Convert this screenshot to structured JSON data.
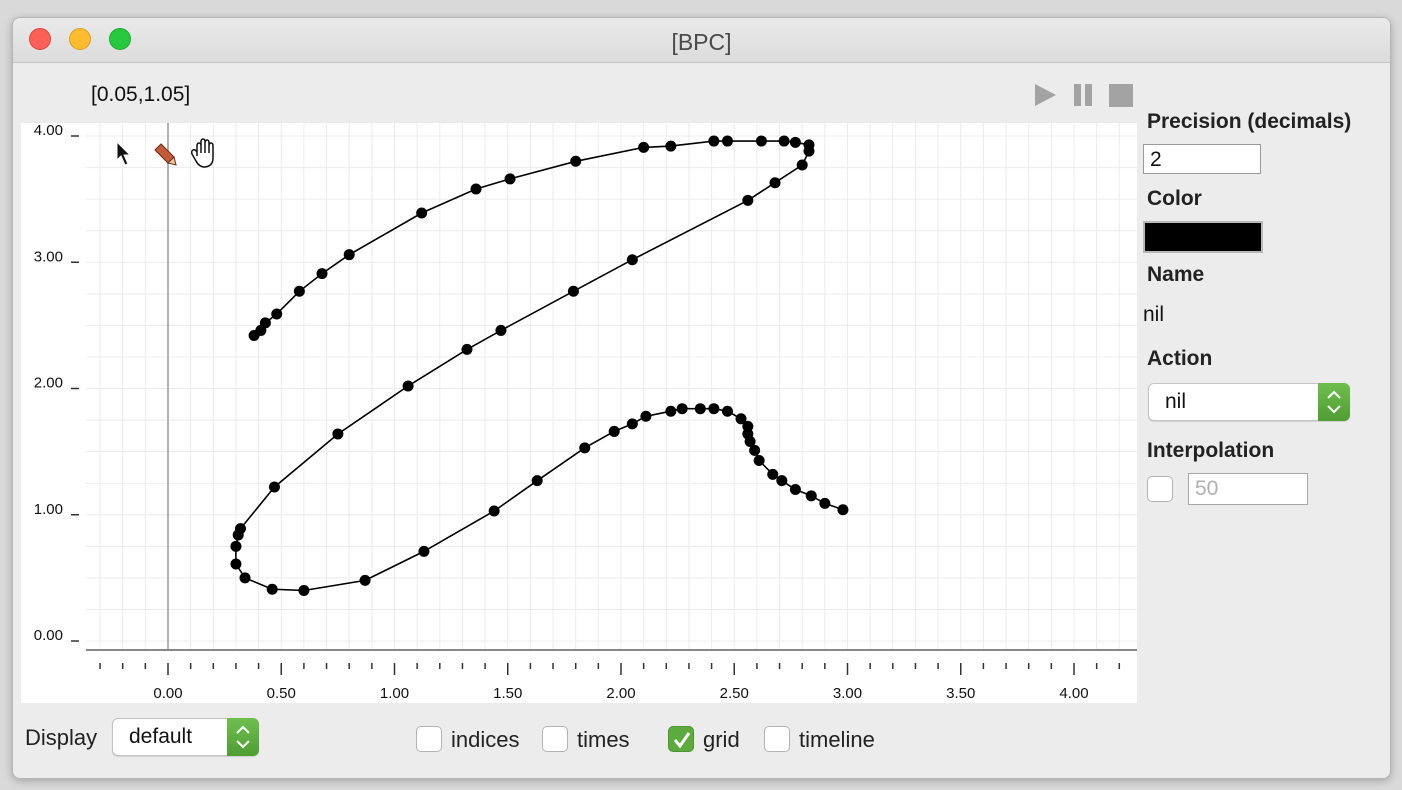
{
  "window": {
    "title": "[BPC]"
  },
  "coord_readout": "[0.05,1.05]",
  "transport": {
    "play": "play-icon",
    "pause": "pause-icon",
    "stop": "stop-icon"
  },
  "tools": {
    "arrow": "arrow-cursor-icon",
    "pencil": "pencil-icon",
    "hand": "hand-icon"
  },
  "panel": {
    "precision_label": "Precision (decimals)",
    "precision_value": "2",
    "color_label": "Color",
    "color_value": "#000000",
    "name_label": "Name",
    "name_value": "nil",
    "action_label": "Action",
    "action_value": "nil",
    "interpolation_label": "Interpolation",
    "interpolation_checked": false,
    "interpolation_value": "50"
  },
  "bottom": {
    "display_label": "Display",
    "display_value": "default",
    "checkboxes": [
      {
        "label": "indices",
        "checked": false
      },
      {
        "label": "times",
        "checked": false
      },
      {
        "label": "grid",
        "checked": true
      },
      {
        "label": "timeline",
        "checked": false
      }
    ]
  },
  "chart_data": {
    "type": "line",
    "xlim": [
      -0.37,
      4.25
    ],
    "ylim": [
      -0.1,
      4.1
    ],
    "x_ticks": [
      "0.00",
      "0.50",
      "1.00",
      "1.50",
      "2.00",
      "2.50",
      "3.00",
      "3.50",
      "4.00"
    ],
    "y_ticks": [
      "0.00",
      "1.00",
      "2.00",
      "3.00",
      "4.00"
    ],
    "grid": true,
    "points": [
      [
        0.38,
        2.42
      ],
      [
        0.41,
        2.46
      ],
      [
        0.43,
        2.52
      ],
      [
        0.48,
        2.59
      ],
      [
        0.58,
        2.77
      ],
      [
        0.68,
        2.91
      ],
      [
        0.8,
        3.06
      ],
      [
        1.12,
        3.39
      ],
      [
        1.36,
        3.58
      ],
      [
        1.51,
        3.66
      ],
      [
        1.8,
        3.8
      ],
      [
        2.1,
        3.91
      ],
      [
        2.22,
        3.92
      ],
      [
        2.41,
        3.96
      ],
      [
        2.47,
        3.96
      ],
      [
        2.62,
        3.96
      ],
      [
        2.72,
        3.96
      ],
      [
        2.77,
        3.95
      ],
      [
        2.83,
        3.93
      ],
      [
        2.83,
        3.88
      ],
      [
        2.8,
        3.77
      ],
      [
        2.68,
        3.63
      ],
      [
        2.56,
        3.49
      ],
      [
        2.05,
        3.02
      ],
      [
        1.79,
        2.77
      ],
      [
        1.47,
        2.46
      ],
      [
        1.32,
        2.31
      ],
      [
        1.06,
        2.02
      ],
      [
        0.75,
        1.64
      ],
      [
        0.47,
        1.22
      ],
      [
        0.32,
        0.89
      ],
      [
        0.31,
        0.84
      ],
      [
        0.3,
        0.75
      ],
      [
        0.3,
        0.61
      ],
      [
        0.34,
        0.5
      ],
      [
        0.46,
        0.41
      ],
      [
        0.6,
        0.4
      ],
      [
        0.87,
        0.48
      ],
      [
        1.13,
        0.71
      ],
      [
        1.44,
        1.03
      ],
      [
        1.63,
        1.27
      ],
      [
        1.84,
        1.53
      ],
      [
        1.97,
        1.66
      ],
      [
        2.05,
        1.72
      ],
      [
        2.11,
        1.78
      ],
      [
        2.22,
        1.82
      ],
      [
        2.27,
        1.84
      ],
      [
        2.35,
        1.84
      ],
      [
        2.41,
        1.84
      ],
      [
        2.47,
        1.82
      ],
      [
        2.53,
        1.76
      ],
      [
        2.56,
        1.7
      ],
      [
        2.56,
        1.64
      ],
      [
        2.57,
        1.58
      ],
      [
        2.59,
        1.51
      ],
      [
        2.61,
        1.43
      ],
      [
        2.67,
        1.32
      ],
      [
        2.71,
        1.27
      ],
      [
        2.77,
        1.2
      ],
      [
        2.84,
        1.15
      ],
      [
        2.9,
        1.09
      ],
      [
        2.98,
        1.04
      ]
    ]
  }
}
